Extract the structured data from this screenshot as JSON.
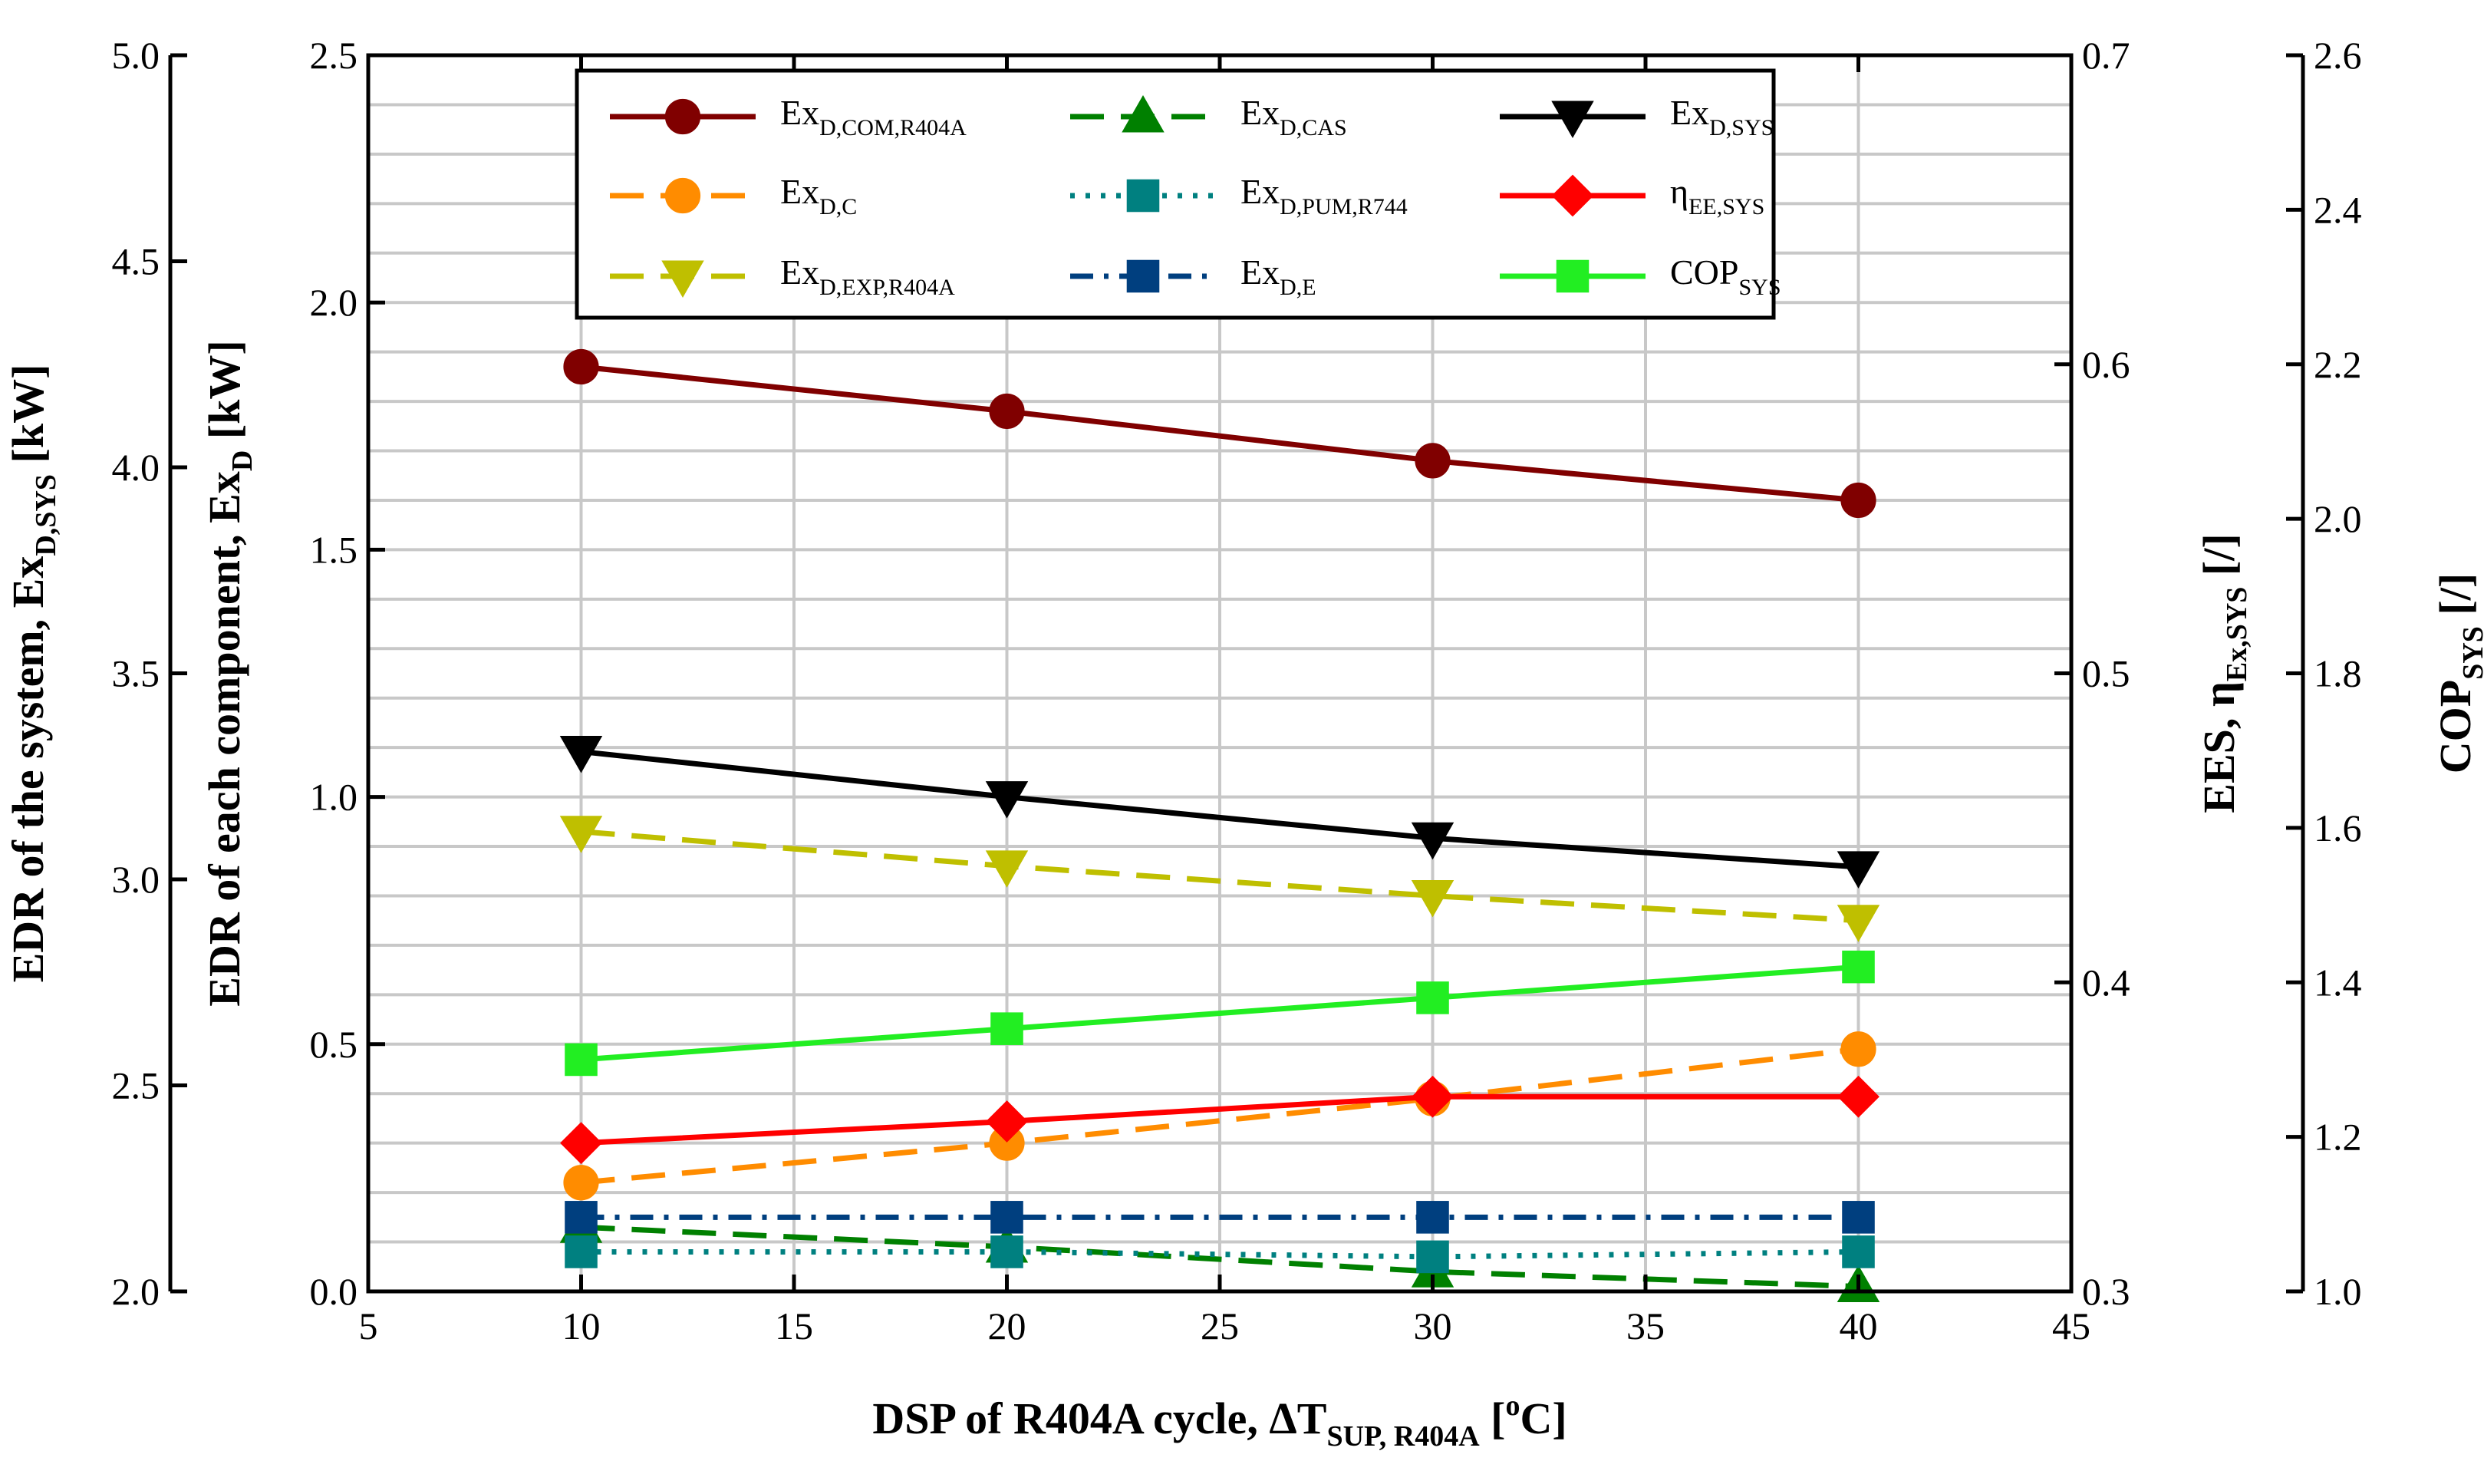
{
  "colors": {
    "com": "#800000",
    "c": "#ff8c00",
    "exp": "#bfbf00",
    "cas": "#008000",
    "pum": "#008080",
    "e": "#003f7f",
    "sys": "#000000",
    "eff": "#ff0000",
    "cop": "#22ee22",
    "grid": "#c8c8c8"
  },
  "chart_data": {
    "type": "line",
    "x": [
      10,
      20,
      30,
      40
    ],
    "xlim": [
      5,
      45
    ],
    "x_ticks": [
      "5",
      "10",
      "15",
      "20",
      "25",
      "30",
      "35",
      "40",
      "45"
    ],
    "xlabel": {
      "main": "DSP of R404A cycle, ΔT",
      "sub": "SUP, R404A",
      "post": " [",
      "sup": "o",
      "unit": "C]"
    },
    "axes": {
      "left_outer": {
        "range": [
          2.0,
          5.0
        ],
        "ticks": [
          "2.0",
          "2.5",
          "3.0",
          "3.5",
          "4.0",
          "4.5",
          "5.0"
        ],
        "label": {
          "main": "EDR of the system, Ex",
          "sub": "D,SYS",
          "post": " [kW]"
        }
      },
      "left_inner": {
        "range": [
          0.0,
          2.5
        ],
        "ticks": [
          "0.0",
          "0.5",
          "1.0",
          "1.5",
          "2.0",
          "2.5"
        ],
        "label": {
          "main": "EDR of each component, Ex",
          "sub": "D",
          "post": " [kW]"
        }
      },
      "right_inner": {
        "range": [
          0.3,
          0.7
        ],
        "ticks": [
          "0.3",
          "0.4",
          "0.5",
          "0.6",
          "0.7"
        ],
        "label": {
          "main": "EES, η",
          "sub": "Ex,SYS",
          "post": " [/]"
        }
      },
      "right_outer": {
        "range": [
          1.0,
          2.6
        ],
        "ticks": [
          "1.0",
          "1.2",
          "1.4",
          "1.6",
          "1.8",
          "2.0",
          "2.2",
          "2.4",
          "2.6"
        ],
        "label": {
          "main": "COP",
          "sub": "SYS",
          "post": " [/]"
        }
      }
    },
    "series": [
      {
        "name": "Ex",
        "sub": "D,COM,R404A",
        "axis": "left_inner",
        "color_key": "com",
        "marker": "circle",
        "dash": "solid",
        "values": [
          1.87,
          1.78,
          1.68,
          1.6
        ]
      },
      {
        "name": "Ex",
        "sub": "D,C",
        "axis": "left_inner",
        "color_key": "c",
        "marker": "circle",
        "dash": "dashed",
        "values": [
          0.22,
          0.3,
          0.39,
          0.49
        ]
      },
      {
        "name": "Ex",
        "sub": "D,EXP,R404A",
        "axis": "left_inner",
        "color_key": "exp",
        "marker": "triangle-down",
        "dash": "dashed",
        "values": [
          0.93,
          0.86,
          0.8,
          0.75
        ]
      },
      {
        "name": "Ex",
        "sub": "D,CAS",
        "axis": "left_inner",
        "color_key": "cas",
        "marker": "triangle-up",
        "dash": "dashed",
        "values": [
          0.13,
          0.09,
          0.04,
          0.01
        ]
      },
      {
        "name": "Ex",
        "sub": "D,PUM,R744",
        "axis": "left_inner",
        "color_key": "pum",
        "marker": "square",
        "dash": "dotted",
        "values": [
          0.08,
          0.08,
          0.07,
          0.08
        ]
      },
      {
        "name": "Ex",
        "sub": "D,E",
        "axis": "left_inner",
        "color_key": "e",
        "marker": "square",
        "dash": "dashdot",
        "values": [
          0.15,
          0.15,
          0.15,
          0.15
        ]
      },
      {
        "name": "Ex",
        "sub": "D,SYS",
        "axis": "left_outer",
        "color_key": "sys",
        "marker": "triangle-down",
        "dash": "solid",
        "values": [
          3.31,
          3.2,
          3.1,
          3.03
        ]
      },
      {
        "name": "η",
        "sub": "EE,SYS",
        "axis": "right_inner",
        "color_key": "eff",
        "marker": "diamond",
        "dash": "solid",
        "values": [
          0.348,
          0.355,
          0.363,
          0.363
        ]
      },
      {
        "name": "COP",
        "sub": "SYS",
        "axis": "right_outer",
        "color_key": "cop",
        "marker": "square",
        "dash": "solid",
        "values": [
          1.3,
          1.34,
          1.38,
          1.42
        ]
      }
    ]
  }
}
